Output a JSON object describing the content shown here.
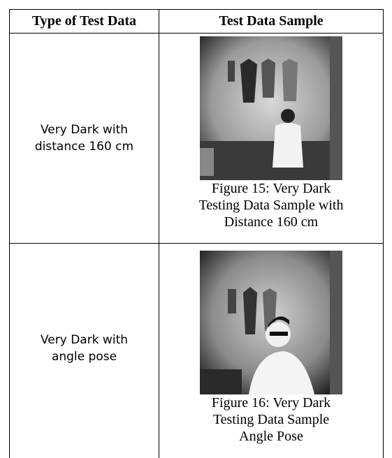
{
  "table": {
    "headers": [
      "Type of Test Data",
      "Test Data Sample"
    ],
    "rows": [
      {
        "type": [
          "Very Dark with",
          "distance 160 cm"
        ],
        "caption": [
          "Figure 15: Very Dark",
          "Testing Data Sample with",
          "Distance 160 cm"
        ]
      },
      {
        "type": [
          "Very Dark with",
          "angle pose"
        ],
        "caption": [
          "Figure 16: Very Dark",
          "Testing Data Sample",
          "Angle Pose"
        ]
      }
    ]
  }
}
